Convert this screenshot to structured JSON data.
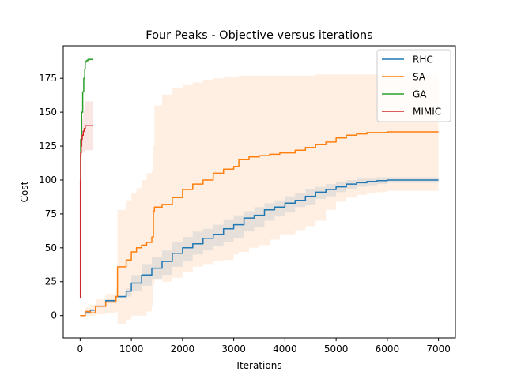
{
  "chart_data": {
    "type": "line",
    "title": "Four Peaks - Objective versus iterations",
    "xlabel": "Iterations",
    "ylabel": "Cost",
    "xlim": [
      -330,
      7330
    ],
    "ylim": [
      -16.5,
      199
    ],
    "xticks": [
      0,
      1000,
      2000,
      3000,
      4000,
      5000,
      6000,
      7000
    ],
    "yticks": [
      0,
      25,
      50,
      75,
      100,
      125,
      150,
      175
    ],
    "grid": false,
    "legend_position": "top-right",
    "series": [
      {
        "name": "RHC",
        "color": "#1f77b4",
        "x": [
          0,
          100,
          200,
          300,
          500,
          700,
          900,
          1000,
          1200,
          1400,
          1600,
          1800,
          2000,
          2200,
          2400,
          2600,
          2800,
          3000,
          3200,
          3400,
          3600,
          3800,
          4000,
          4200,
          4400,
          4600,
          4800,
          5000,
          5200,
          5400,
          5600,
          5800,
          6000,
          6300,
          6600,
          7000
        ],
        "y": [
          0,
          2,
          4,
          7,
          11,
          14,
          18,
          24,
          30,
          35,
          40,
          46,
          50,
          53,
          57,
          60,
          64,
          67,
          72,
          74,
          78,
          80,
          83,
          85,
          88,
          91,
          93,
          95,
          97,
          98,
          99,
          99.5,
          100,
          100,
          100,
          100
        ],
        "band_lower": [
          0,
          1,
          3,
          6,
          10,
          13,
          14,
          18,
          22,
          27,
          30,
          36,
          40,
          45,
          48,
          51,
          54,
          57,
          62,
          65,
          70,
          73,
          76,
          80,
          82,
          86,
          88,
          91,
          93,
          95,
          96,
          97,
          98,
          98,
          98,
          98
        ],
        "band_upper": [
          0,
          3,
          5,
          8,
          12,
          15,
          20,
          30,
          38,
          43,
          48,
          54,
          58,
          62,
          64,
          67,
          71,
          74,
          77,
          80,
          83,
          85,
          88,
          90,
          93,
          95,
          97,
          99,
          100,
          101,
          101,
          102,
          102,
          102,
          102,
          102
        ]
      },
      {
        "name": "SA",
        "color": "#ff7f0e",
        "x": [
          0,
          100,
          200,
          300,
          500,
          700,
          730,
          900,
          1000,
          1100,
          1200,
          1300,
          1400,
          1430,
          1450,
          1600,
          1800,
          2000,
          2200,
          2400,
          2600,
          2800,
          3000,
          3100,
          3300,
          3500,
          3700,
          3900,
          4200,
          4400,
          4600,
          4800,
          5000,
          5200,
          5400,
          5600,
          5800,
          6000,
          6300,
          6600,
          7000
        ],
        "y": [
          0,
          3,
          2,
          7,
          10,
          14,
          36,
          41,
          47,
          50,
          52,
          54,
          58,
          77,
          80,
          82,
          87,
          93,
          97,
          100,
          105,
          108,
          110,
          115,
          117,
          118,
          119,
          120,
          122,
          124,
          126,
          128,
          131,
          133,
          134,
          135,
          135,
          135.5,
          135.5,
          135.5,
          135.5
        ],
        "band_lower": [
          0,
          0,
          0,
          1,
          2,
          3,
          -6,
          -3,
          0,
          0,
          0,
          3,
          7,
          23,
          27,
          25,
          28,
          32,
          36,
          38,
          40,
          41,
          45,
          47,
          50,
          52,
          56,
          60,
          63,
          66,
          70,
          78,
          84,
          87,
          89,
          90,
          91,
          92,
          92,
          92,
          92
        ],
        "band_upper": [
          0,
          6,
          8,
          12,
          16,
          20,
          78,
          85,
          90,
          94,
          100,
          105,
          107,
          125,
          155,
          163,
          168,
          170,
          172,
          174,
          175,
          176,
          176,
          177,
          177,
          177,
          177,
          177,
          177,
          177,
          178,
          178,
          178,
          178,
          178,
          178,
          178,
          178,
          178,
          178,
          178
        ]
      },
      {
        "name": "GA",
        "color": "#2ca02c",
        "x": [
          0,
          10,
          30,
          50,
          70,
          90,
          100,
          120,
          150,
          200,
          250
        ],
        "y": [
          13,
          130,
          150,
          165,
          175,
          182,
          187,
          188,
          189,
          189,
          189
        ],
        "band_lower": [
          13,
          129,
          149,
          164,
          174,
          181,
          186,
          187,
          188,
          188,
          188
        ],
        "band_upper": [
          13,
          131,
          151,
          166,
          176,
          183,
          188,
          189,
          190,
          190,
          190
        ]
      },
      {
        "name": "MIMIC",
        "color": "#d62728",
        "x": [
          0,
          5,
          10,
          20,
          30,
          40,
          60,
          80,
          100,
          150,
          200,
          250
        ],
        "y": [
          13,
          100,
          120,
          125,
          130,
          133,
          136,
          138,
          140,
          140,
          140,
          140
        ],
        "band_lower": [
          13,
          95,
          110,
          115,
          118,
          120,
          121,
          121,
          122,
          122,
          122,
          122
        ],
        "band_upper": [
          13,
          105,
          128,
          135,
          140,
          145,
          150,
          155,
          158,
          158,
          158,
          158
        ]
      }
    ]
  }
}
